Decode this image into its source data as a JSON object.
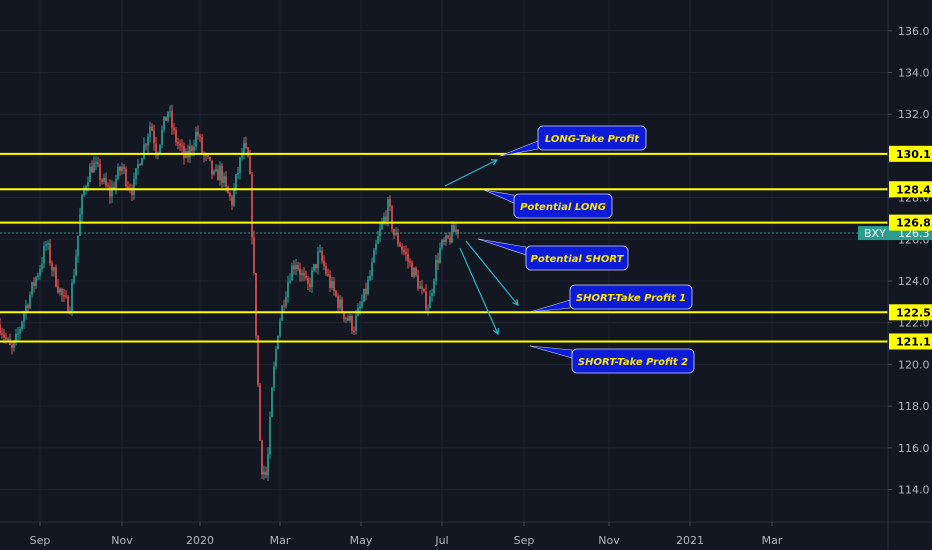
{
  "colors": {
    "background": "#131722",
    "grid": "#1f2330",
    "up": "#26a69a",
    "down": "#ef5350",
    "level_line": "#ffff00",
    "arrow": "#2db7c9",
    "callout_fill": "#0b1bd6",
    "callout_text": "#ffe600",
    "current_price_line": "#2a9d8f"
  },
  "chart_data": {
    "type": "candlestick",
    "x_tick_labels": [
      "Sep",
      "Nov",
      "2020",
      "Mar",
      "May",
      "Jul",
      "Sep",
      "Nov",
      "2021",
      "Mar"
    ],
    "y_tick_labels": [
      "114.0",
      "116.0",
      "118.0",
      "120.0",
      "122.0",
      "124.0",
      "126.0",
      "128.0",
      "130.0",
      "132.0",
      "134.0",
      "136.0"
    ],
    "ylim": [
      112.8,
      137.0
    ],
    "grid": true,
    "current_price": {
      "symbol": "BXY",
      "value": 126.3
    },
    "horizontal_levels": [
      {
        "label": "130.1",
        "value": 130.1
      },
      {
        "label": "128.4",
        "value": 128.4
      },
      {
        "label": "126.8",
        "value": 126.8
      },
      {
        "label": "122.5",
        "value": 122.5
      },
      {
        "label": "121.1",
        "value": 121.1
      }
    ],
    "annotations": [
      "LONG-Take Profit",
      "Potential LONG",
      "Potential SHORT",
      "SHORT-Take Profit 1",
      "SHORT-Take Profit 2"
    ],
    "price_path": [
      121.9,
      121.2,
      120.6,
      121.3,
      122.4,
      123.2,
      124.0,
      124.8,
      125.8,
      124.6,
      123.8,
      123.0,
      122.8,
      125.0,
      127.6,
      129.0,
      129.6,
      129.2,
      128.6,
      128.2,
      128.9,
      129.5,
      128.7,
      128.4,
      129.8,
      130.6,
      131.6,
      130.2,
      131.2,
      132.2,
      131.0,
      130.4,
      129.8,
      130.4,
      131.2,
      130.0,
      129.6,
      128.9,
      129.3,
      128.3,
      127.8,
      129.2,
      130.4,
      129.6,
      122.8,
      115.2,
      114.6,
      119.0,
      121.8,
      123.2,
      124.4,
      125.0,
      124.3,
      123.6,
      124.4,
      125.3,
      124.6,
      123.8,
      123.2,
      122.6,
      122.2,
      121.8,
      122.6,
      123.4,
      124.4,
      125.8,
      126.8,
      127.6,
      126.2,
      125.8,
      125.2,
      124.6,
      124.0,
      123.2,
      122.8,
      124.6,
      125.6,
      125.8,
      126.3,
      126.5
    ]
  }
}
